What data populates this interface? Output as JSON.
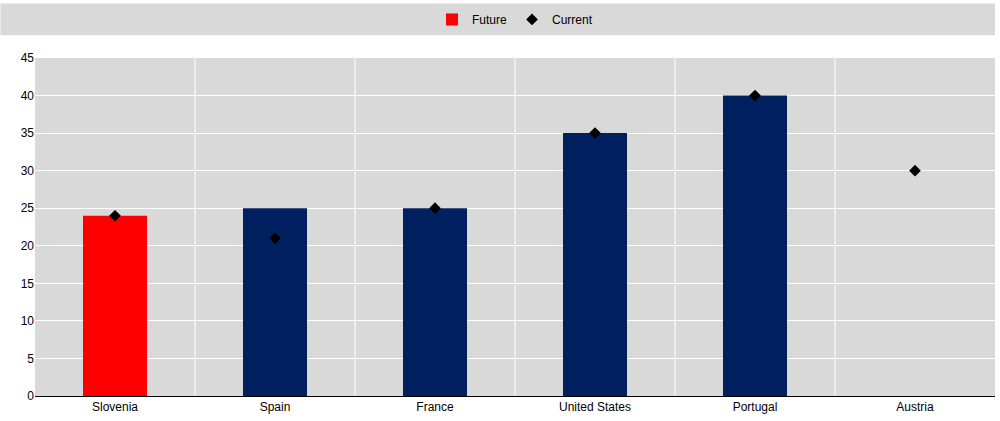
{
  "chart_data": {
    "type": "bar",
    "categories": [
      "Slovenia",
      "Spain",
      "France",
      "United States",
      "Portugal",
      "Austria"
    ],
    "series": [
      {
        "name": "Future",
        "type": "bar",
        "colors": [
          "#ff0000",
          "#002060",
          "#002060",
          "#002060",
          "#002060",
          "#002060"
        ],
        "values": [
          24,
          25,
          25,
          35,
          40,
          null
        ]
      },
      {
        "name": "Current",
        "type": "scatter",
        "marker": "diamond",
        "color": "#000000",
        "values": [
          24,
          21,
          25,
          35,
          40,
          30
        ]
      }
    ],
    "ylim": [
      0,
      45
    ],
    "yticks": [
      0,
      5,
      10,
      15,
      20,
      25,
      30,
      35,
      40,
      45
    ],
    "grid": true,
    "legend": "top"
  }
}
